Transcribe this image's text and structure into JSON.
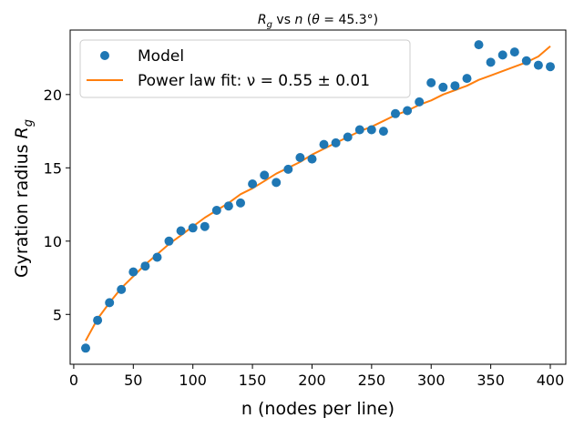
{
  "chart_data": {
    "type": "scatter",
    "title": {
      "prefix": "R",
      "sub": "g",
      "middle": " vs ",
      "var_n": "n",
      "suffix_open": " (",
      "theta": "θ",
      "suffix_close": " = 45.3°)"
    },
    "xlabel": "n (nodes per line)",
    "ylabel": {
      "text": "Gyration radius ",
      "var": "R",
      "sub": "g"
    },
    "xlim": [
      -3,
      413
    ],
    "ylim": [
      1.6,
      24.4
    ],
    "xticks": [
      0,
      50,
      100,
      150,
      200,
      250,
      300,
      350,
      400
    ],
    "yticks": [
      5,
      10,
      15,
      20
    ],
    "legend": {
      "position": "top-left",
      "entries": [
        {
          "label": "Model",
          "kind": "marker"
        },
        {
          "label": "Power law fit: ν = 0.55 ± 0.01",
          "kind": "line"
        }
      ]
    },
    "series": [
      {
        "name": "Model",
        "type": "scatter",
        "color": "#1f77b4",
        "x": [
          10,
          20,
          30,
          40,
          50,
          60,
          70,
          80,
          90,
          100,
          110,
          120,
          130,
          140,
          150,
          160,
          170,
          180,
          190,
          200,
          210,
          220,
          230,
          240,
          250,
          260,
          270,
          280,
          290,
          300,
          310,
          320,
          330,
          340,
          350,
          360,
          370,
          380,
          390,
          400
        ],
        "y": [
          2.7,
          4.6,
          5.8,
          6.7,
          7.9,
          8.3,
          8.9,
          10.0,
          10.7,
          10.9,
          11.0,
          12.1,
          12.4,
          12.6,
          13.9,
          14.5,
          14.0,
          14.9,
          15.7,
          15.6,
          16.6,
          16.7,
          17.1,
          17.6,
          17.6,
          17.5,
          18.7,
          18.9,
          19.5,
          20.8,
          20.5,
          20.6,
          21.1,
          23.4,
          22.2,
          22.7,
          22.9,
          22.3,
          22.0,
          21.9
        ]
      },
      {
        "name": "Power law fit: ν = 0.55 ± 0.01",
        "type": "line",
        "color": "#ff7f0e",
        "x": [
          10,
          20,
          30,
          40,
          50,
          60,
          70,
          80,
          90,
          100,
          110,
          120,
          130,
          140,
          150,
          160,
          170,
          180,
          190,
          200,
          210,
          220,
          230,
          240,
          250,
          260,
          270,
          280,
          290,
          300,
          310,
          320,
          330,
          340,
          350,
          360,
          370,
          380,
          390,
          400
        ],
        "y": [
          3.2,
          4.7,
          5.8,
          6.8,
          7.6,
          8.4,
          9.1,
          9.8,
          10.4,
          11.0,
          11.6,
          12.1,
          12.6,
          13.2,
          13.6,
          14.1,
          14.6,
          15.0,
          15.4,
          15.9,
          16.3,
          16.7,
          17.1,
          17.5,
          17.8,
          18.2,
          18.6,
          18.9,
          19.3,
          19.6,
          20.0,
          20.3,
          20.6,
          21.0,
          21.3,
          21.6,
          21.9,
          22.2,
          22.6,
          23.3
        ]
      }
    ]
  }
}
